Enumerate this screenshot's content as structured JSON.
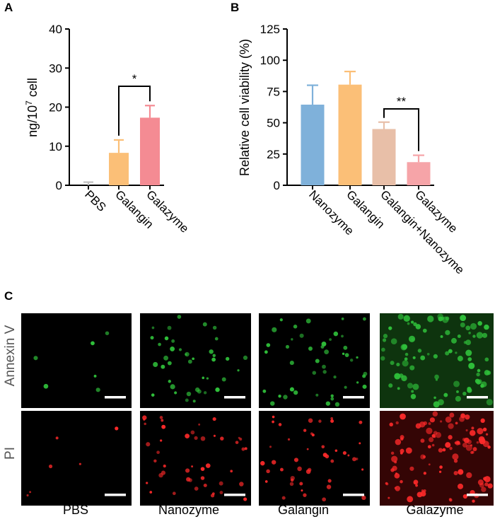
{
  "panels": {
    "a": {
      "letter": "A"
    },
    "b": {
      "letter": "B"
    },
    "c": {
      "letter": "C"
    }
  },
  "chart_data": [
    {
      "type": "bar",
      "ylabel_base": "ng/10",
      "ylabel_sup": "7",
      "ylabel_tail": " cell",
      "ylim": [
        0,
        40
      ],
      "yticks": [
        0,
        10,
        20,
        30,
        40
      ],
      "categories": [
        "PBS",
        "Galangin",
        "Galazyme"
      ],
      "values": [
        0,
        8.3,
        17.3
      ],
      "errors": [
        0.8,
        3.3,
        3.1
      ],
      "colors": [
        "#c0c0c0",
        "#fbbf77",
        "#f48b93"
      ],
      "significance": [
        {
          "from": 1,
          "to": 2,
          "label": "*"
        }
      ]
    },
    {
      "type": "bar",
      "ylabel": "Relative cell viability (%)",
      "ylim": [
        0,
        125
      ],
      "yticks": [
        0,
        25,
        50,
        75,
        100,
        125
      ],
      "categories": [
        "Nanozyme",
        "Galangin",
        "Galangin+Nanozyme",
        "Galazyme"
      ],
      "values": [
        64.5,
        80.5,
        45.0,
        18.5
      ],
      "errors": [
        15.5,
        10.5,
        5.5,
        5.5
      ],
      "colors": [
        "#7fb1da",
        "#fbbf77",
        "#e8bfa8",
        "#f6a4a8"
      ],
      "significance": [
        {
          "from": 2,
          "to": 3,
          "label": "**"
        }
      ]
    }
  ],
  "microscopy": {
    "rows": [
      "Annexin V",
      "PI"
    ],
    "columns": [
      "PBS",
      "Nanozyme",
      "Galangin",
      "Galazyme"
    ]
  }
}
